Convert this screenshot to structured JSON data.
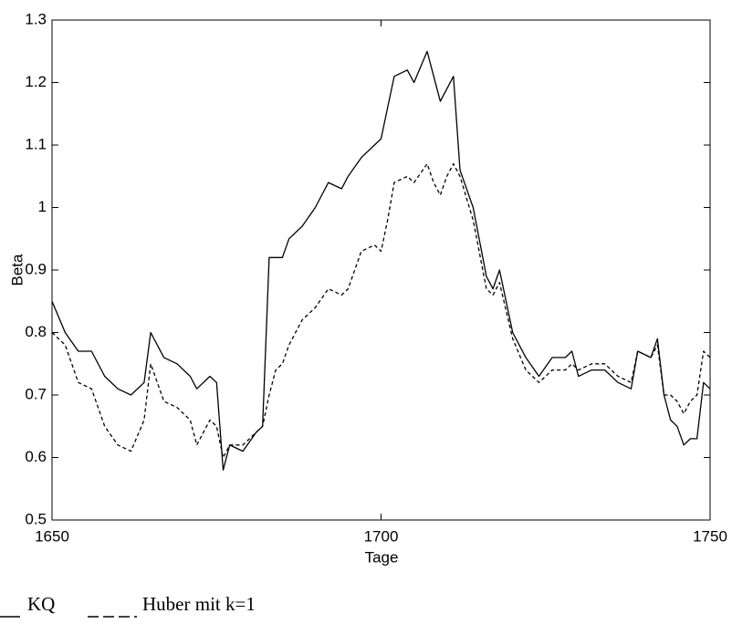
{
  "chart_data": {
    "type": "line",
    "xlabel": "Tage",
    "ylabel": "Beta",
    "x": [
      1650,
      1652,
      1654,
      1656,
      1658,
      1660,
      1662,
      1664,
      1665,
      1667,
      1669,
      1671,
      1672,
      1674,
      1675,
      1676,
      1677,
      1679,
      1681,
      1682,
      1683,
      1684,
      1685,
      1686,
      1688,
      1690,
      1692,
      1694,
      1695,
      1697,
      1699,
      1700,
      1701,
      1702,
      1704,
      1705,
      1707,
      1708,
      1709,
      1710,
      1711,
      1712,
      1714,
      1716,
      1717,
      1718,
      1720,
      1722,
      1724,
      1726,
      1728,
      1729,
      1730,
      1732,
      1734,
      1736,
      1738,
      1739,
      1741,
      1742,
      1743,
      1744,
      1745,
      1746,
      1747,
      1748,
      1749,
      1750
    ],
    "series": [
      {
        "name": "KQ",
        "color": "#000000",
        "line_style": "solid",
        "values": [
          0.85,
          0.8,
          0.77,
          0.77,
          0.73,
          0.71,
          0.7,
          0.72,
          0.8,
          0.76,
          0.75,
          0.73,
          0.71,
          0.73,
          0.72,
          0.58,
          0.62,
          0.61,
          0.64,
          0.65,
          0.92,
          0.92,
          0.92,
          0.95,
          0.97,
          1.0,
          1.04,
          1.03,
          1.05,
          1.08,
          1.1,
          1.11,
          1.16,
          1.21,
          1.22,
          1.2,
          1.25,
          1.21,
          1.17,
          1.19,
          1.21,
          1.06,
          1.0,
          0.89,
          0.87,
          0.9,
          0.8,
          0.76,
          0.73,
          0.76,
          0.76,
          0.77,
          0.73,
          0.74,
          0.74,
          0.72,
          0.71,
          0.77,
          0.76,
          0.79,
          0.7,
          0.66,
          0.65,
          0.62,
          0.63,
          0.63,
          0.72,
          0.71
        ]
      },
      {
        "name": "Huber mit k=1",
        "color": "#000000",
        "line_style": "dashed",
        "values": [
          0.8,
          0.78,
          0.72,
          0.71,
          0.65,
          0.62,
          0.61,
          0.66,
          0.75,
          0.69,
          0.68,
          0.66,
          0.62,
          0.66,
          0.65,
          0.6,
          0.62,
          0.62,
          0.64,
          0.65,
          0.7,
          0.74,
          0.75,
          0.78,
          0.82,
          0.84,
          0.87,
          0.86,
          0.87,
          0.93,
          0.94,
          0.93,
          0.98,
          1.04,
          1.05,
          1.04,
          1.07,
          1.04,
          1.02,
          1.05,
          1.07,
          1.05,
          0.98,
          0.87,
          0.86,
          0.88,
          0.79,
          0.74,
          0.72,
          0.74,
          0.74,
          0.75,
          0.74,
          0.75,
          0.75,
          0.73,
          0.72,
          0.77,
          0.76,
          0.78,
          0.7,
          0.7,
          0.69,
          0.67,
          0.69,
          0.7,
          0.77,
          0.76
        ]
      }
    ],
    "xlim": [
      1650,
      1750
    ],
    "xticks": [
      1650,
      1700,
      1750
    ],
    "ylim": [
      0.5,
      1.3
    ],
    "yticks": [
      0.5,
      0.6,
      0.7,
      0.8,
      0.9,
      1,
      1.1,
      1.2,
      1.3
    ],
    "grid": false
  }
}
